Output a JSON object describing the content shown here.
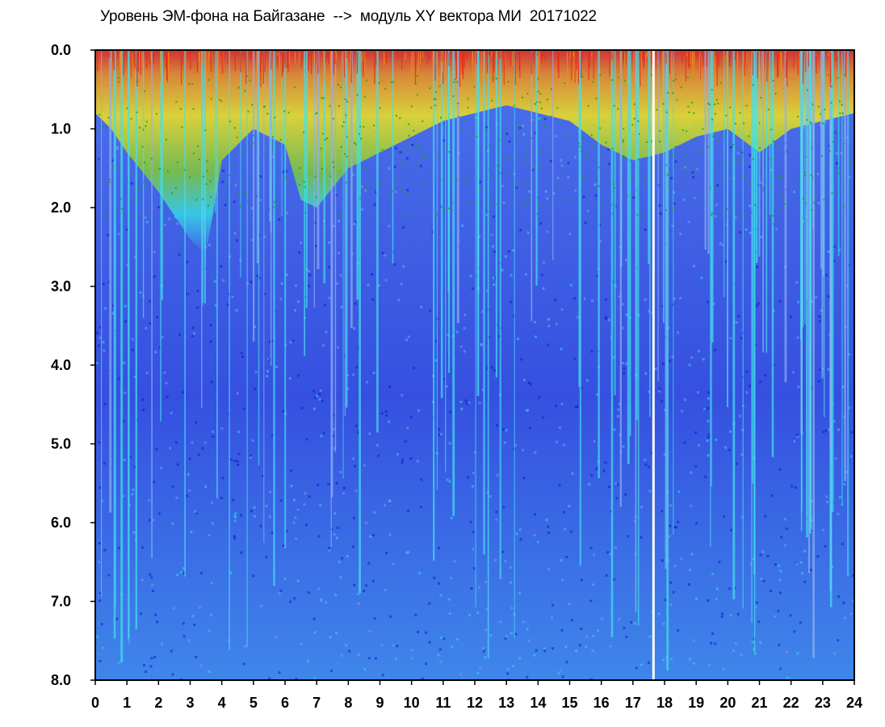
{
  "chart_data": {
    "type": "heatmap",
    "title": "Уровень ЭМ-фона на Байгазане  -->  модуль XY вектора МИ  20171022",
    "xlabel": "",
    "ylabel": "",
    "x_ticks": [
      "0",
      "1",
      "2",
      "3",
      "4",
      "5",
      "6",
      "7",
      "8",
      "9",
      "10",
      "11",
      "12",
      "13",
      "14",
      "15",
      "16",
      "17",
      "18",
      "19",
      "20",
      "21",
      "22",
      "23",
      "24"
    ],
    "y_ticks": [
      "0.0",
      "1.0",
      "2.0",
      "3.0",
      "4.0",
      "5.0",
      "6.0",
      "7.0",
      "8.0"
    ],
    "xlim": [
      0,
      24
    ],
    "ylim": [
      0,
      8
    ],
    "y_inverted": true,
    "grid": false,
    "colorscale": [
      "#0a1ad8",
      "#3a56e8",
      "#7f9cf0",
      "#35d8e6",
      "#22b822",
      "#f2e31c",
      "#f08c1a",
      "#e82818"
    ],
    "high_level_depth_profile": [
      {
        "x": 0.0,
        "y": 0.8
      },
      {
        "x": 0.5,
        "y": 1.0
      },
      {
        "x": 1.0,
        "y": 1.3
      },
      {
        "x": 2.0,
        "y": 1.8
      },
      {
        "x": 2.5,
        "y": 2.1
      },
      {
        "x": 3.0,
        "y": 2.4
      },
      {
        "x": 3.5,
        "y": 2.6
      },
      {
        "x": 4.0,
        "y": 1.4
      },
      {
        "x": 5.0,
        "y": 1.0
      },
      {
        "x": 6.0,
        "y": 1.2
      },
      {
        "x": 6.5,
        "y": 1.9
      },
      {
        "x": 7.0,
        "y": 2.0
      },
      {
        "x": 8.0,
        "y": 1.5
      },
      {
        "x": 9.0,
        "y": 1.3
      },
      {
        "x": 10.0,
        "y": 1.1
      },
      {
        "x": 11.0,
        "y": 0.9
      },
      {
        "x": 12.0,
        "y": 0.8
      },
      {
        "x": 13.0,
        "y": 0.7
      },
      {
        "x": 14.0,
        "y": 0.8
      },
      {
        "x": 15.0,
        "y": 0.9
      },
      {
        "x": 16.0,
        "y": 1.2
      },
      {
        "x": 17.0,
        "y": 1.4
      },
      {
        "x": 18.0,
        "y": 1.3
      },
      {
        "x": 19.0,
        "y": 1.1
      },
      {
        "x": 20.0,
        "y": 1.0
      },
      {
        "x": 21.0,
        "y": 1.3
      },
      {
        "x": 22.0,
        "y": 1.0
      },
      {
        "x": 23.0,
        "y": 0.9
      },
      {
        "x": 24.0,
        "y": 0.8
      }
    ],
    "gap_x": 17.65
  }
}
